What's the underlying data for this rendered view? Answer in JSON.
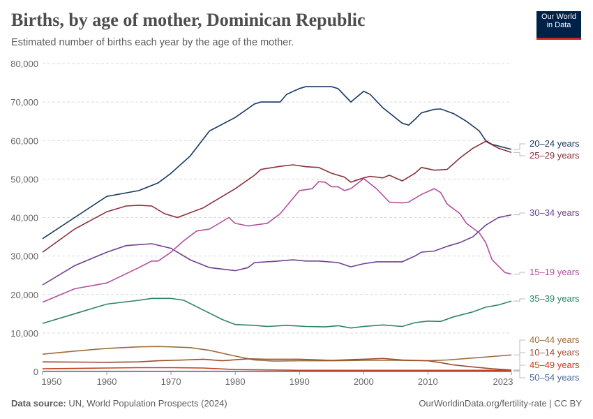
{
  "header": {
    "title": "Births, by age of mother, Dominican Republic",
    "subtitle": "Estimated number of births each year by the age of the mother.",
    "logo_line1": "Our World",
    "logo_line2": "in Data"
  },
  "footer": {
    "source_label": "Data source:",
    "source": "UN, World Population Prospects (2024)",
    "link": "OurWorldinData.org/fertility-rate | CC BY"
  },
  "chart_data": {
    "type": "line",
    "title": "Births, by age of mother, Dominican Republic",
    "xlim": [
      1950,
      2023
    ],
    "ylim": [
      0,
      80000
    ],
    "yticks": [
      0,
      10000,
      20000,
      30000,
      40000,
      50000,
      60000,
      70000,
      80000
    ],
    "ytick_labels": [
      "0",
      "10,000",
      "20,000",
      "30,000",
      "40,000",
      "50,000",
      "60,000",
      "70,000",
      "80,000"
    ],
    "xticks": [
      1950,
      1960,
      1970,
      1980,
      1990,
      2000,
      2010,
      2023
    ],
    "grid": "horizontal dashed",
    "legend": "right, labels at line ends",
    "series": [
      {
        "name": "20–24 years",
        "color": "#18375f",
        "points": [
          [
            1950,
            34500
          ],
          [
            1955,
            40000
          ],
          [
            1960,
            45500
          ],
          [
            1965,
            47000
          ],
          [
            1968,
            49000
          ],
          [
            1970,
            51500
          ],
          [
            1973,
            56000
          ],
          [
            1976,
            62500
          ],
          [
            1980,
            66000
          ],
          [
            1983,
            69500
          ],
          [
            1984,
            70000
          ],
          [
            1987,
            70000
          ],
          [
            1988,
            72000
          ],
          [
            1990,
            73500
          ],
          [
            1991,
            74000
          ],
          [
            1995,
            74000
          ],
          [
            1996,
            73500
          ],
          [
            1998,
            70000
          ],
          [
            2000,
            72800
          ],
          [
            2001,
            72000
          ],
          [
            2003,
            68500
          ],
          [
            2006,
            64500
          ],
          [
            2007,
            64000
          ],
          [
            2008,
            65500
          ],
          [
            2009,
            67200
          ],
          [
            2011,
            68100
          ],
          [
            2012,
            68200
          ],
          [
            2014,
            67000
          ],
          [
            2016,
            65000
          ],
          [
            2018,
            62500
          ],
          [
            2019,
            60000
          ],
          [
            2020,
            59000
          ],
          [
            2023,
            57700
          ]
        ]
      },
      {
        "name": "25–29 years",
        "color": "#883039",
        "points": [
          [
            1950,
            31000
          ],
          [
            1955,
            37000
          ],
          [
            1960,
            41500
          ],
          [
            1963,
            43000
          ],
          [
            1965,
            43200
          ],
          [
            1967,
            43000
          ],
          [
            1969,
            41000
          ],
          [
            1971,
            40000
          ],
          [
            1975,
            42500
          ],
          [
            1980,
            47500
          ],
          [
            1983,
            51000
          ],
          [
            1984,
            52500
          ],
          [
            1987,
            53300
          ],
          [
            1989,
            53700
          ],
          [
            1991,
            53200
          ],
          [
            1993,
            53000
          ],
          [
            1995,
            51500
          ],
          [
            1997,
            50500
          ],
          [
            1998,
            49200
          ],
          [
            2000,
            50300
          ],
          [
            2001,
            50700
          ],
          [
            2003,
            50300
          ],
          [
            2004,
            51000
          ],
          [
            2006,
            49500
          ],
          [
            2008,
            51500
          ],
          [
            2009,
            53000
          ],
          [
            2011,
            52300
          ],
          [
            2013,
            52500
          ],
          [
            2015,
            55500
          ],
          [
            2017,
            58000
          ],
          [
            2019,
            59800
          ],
          [
            2021,
            58000
          ],
          [
            2023,
            56900
          ]
        ]
      },
      {
        "name": "30–34 years",
        "color": "#6d3e91",
        "points": [
          [
            1950,
            22500
          ],
          [
            1955,
            27500
          ],
          [
            1960,
            31000
          ],
          [
            1963,
            32700
          ],
          [
            1967,
            33200
          ],
          [
            1970,
            32000
          ],
          [
            1973,
            29000
          ],
          [
            1976,
            27000
          ],
          [
            1980,
            26200
          ],
          [
            1982,
            27000
          ],
          [
            1983,
            28300
          ],
          [
            1986,
            28600
          ],
          [
            1989,
            29000
          ],
          [
            1991,
            28700
          ],
          [
            1993,
            28700
          ],
          [
            1996,
            28300
          ],
          [
            1998,
            27200
          ],
          [
            2000,
            28000
          ],
          [
            2002,
            28500
          ],
          [
            2006,
            28500
          ],
          [
            2008,
            30000
          ],
          [
            2009,
            31000
          ],
          [
            2011,
            31300
          ],
          [
            2013,
            32500
          ],
          [
            2015,
            33500
          ],
          [
            2017,
            35000
          ],
          [
            2019,
            38000
          ],
          [
            2021,
            40000
          ],
          [
            2023,
            40700
          ]
        ]
      },
      {
        "name": "15–19 years",
        "color": "#b04f9e",
        "points": [
          [
            1950,
            18000
          ],
          [
            1955,
            21500
          ],
          [
            1960,
            23000
          ],
          [
            1965,
            27000
          ],
          [
            1967,
            28700
          ],
          [
            1968,
            28700
          ],
          [
            1970,
            31000
          ],
          [
            1972,
            34000
          ],
          [
            1974,
            36500
          ],
          [
            1976,
            37000
          ],
          [
            1979,
            40000
          ],
          [
            1980,
            38500
          ],
          [
            1982,
            37800
          ],
          [
            1985,
            38500
          ],
          [
            1987,
            41000
          ],
          [
            1988,
            43000
          ],
          [
            1990,
            47000
          ],
          [
            1992,
            47500
          ],
          [
            1993,
            49300
          ],
          [
            1994,
            49200
          ],
          [
            1995,
            48000
          ],
          [
            1996,
            48000
          ],
          [
            1997,
            47000
          ],
          [
            1998,
            47500
          ],
          [
            2000,
            50100
          ],
          [
            2002,
            47500
          ],
          [
            2004,
            44000
          ],
          [
            2006,
            43800
          ],
          [
            2007,
            44000
          ],
          [
            2009,
            46000
          ],
          [
            2011,
            47500
          ],
          [
            2012,
            46500
          ],
          [
            2013,
            43500
          ],
          [
            2015,
            41000
          ],
          [
            2016,
            38500
          ],
          [
            2018,
            36000
          ],
          [
            2019,
            33500
          ],
          [
            2020,
            29000
          ],
          [
            2022,
            25700
          ],
          [
            2023,
            25300
          ]
        ]
      },
      {
        "name": "35–39 years",
        "color": "#2a8465",
        "points": [
          [
            1950,
            12500
          ],
          [
            1955,
            15000
          ],
          [
            1960,
            17500
          ],
          [
            1965,
            18500
          ],
          [
            1967,
            19000
          ],
          [
            1970,
            19000
          ],
          [
            1972,
            18500
          ],
          [
            1975,
            16000
          ],
          [
            1978,
            13500
          ],
          [
            1980,
            12200
          ],
          [
            1983,
            12000
          ],
          [
            1985,
            11700
          ],
          [
            1988,
            12000
          ],
          [
            1991,
            11700
          ],
          [
            1994,
            11600
          ],
          [
            1996,
            11900
          ],
          [
            1998,
            11300
          ],
          [
            2000,
            11700
          ],
          [
            2003,
            12100
          ],
          [
            2006,
            11700
          ],
          [
            2008,
            12700
          ],
          [
            2010,
            13100
          ],
          [
            2012,
            13000
          ],
          [
            2014,
            14200
          ],
          [
            2017,
            15500
          ],
          [
            2019,
            16700
          ],
          [
            2021,
            17300
          ],
          [
            2023,
            18300
          ]
        ]
      },
      {
        "name": "40–44 years",
        "color": "#996d39",
        "points": [
          [
            1950,
            4500
          ],
          [
            1955,
            5300
          ],
          [
            1960,
            6000
          ],
          [
            1965,
            6400
          ],
          [
            1968,
            6500
          ],
          [
            1970,
            6400
          ],
          [
            1973,
            6200
          ],
          [
            1976,
            5500
          ],
          [
            1980,
            4000
          ],
          [
            1983,
            3000
          ],
          [
            1986,
            2700
          ],
          [
            1990,
            2800
          ],
          [
            1995,
            2800
          ],
          [
            2000,
            2900
          ],
          [
            2005,
            2900
          ],
          [
            2010,
            2800
          ],
          [
            2013,
            3000
          ],
          [
            2017,
            3500
          ],
          [
            2020,
            3900
          ],
          [
            2023,
            4300
          ]
        ]
      },
      {
        "name": "10–14 years",
        "color": "#9a4b2e",
        "points": [
          [
            1950,
            2500
          ],
          [
            1960,
            2400
          ],
          [
            1965,
            2500
          ],
          [
            1968,
            2800
          ],
          [
            1972,
            3000
          ],
          [
            1975,
            3200
          ],
          [
            1978,
            2800
          ],
          [
            1982,
            3300
          ],
          [
            1985,
            3200
          ],
          [
            1990,
            3200
          ],
          [
            1995,
            2900
          ],
          [
            2000,
            3200
          ],
          [
            2003,
            3400
          ],
          [
            2006,
            3000
          ],
          [
            2010,
            2800
          ],
          [
            2012,
            2300
          ],
          [
            2014,
            1700
          ],
          [
            2017,
            1200
          ],
          [
            2020,
            700
          ],
          [
            2023,
            400
          ]
        ]
      },
      {
        "name": "45–49 years",
        "color": "#c4401b",
        "points": [
          [
            1950,
            700
          ],
          [
            1960,
            900
          ],
          [
            1965,
            1000
          ],
          [
            1970,
            1000
          ],
          [
            1975,
            900
          ],
          [
            1980,
            500
          ],
          [
            1990,
            300
          ],
          [
            2000,
            300
          ],
          [
            2010,
            300
          ],
          [
            2023,
            300
          ]
        ]
      },
      {
        "name": "50–54 years",
        "color": "#4c6a9c",
        "points": [
          [
            1950,
            50
          ],
          [
            1980,
            50
          ],
          [
            2000,
            30
          ],
          [
            2023,
            30
          ]
        ]
      }
    ]
  }
}
